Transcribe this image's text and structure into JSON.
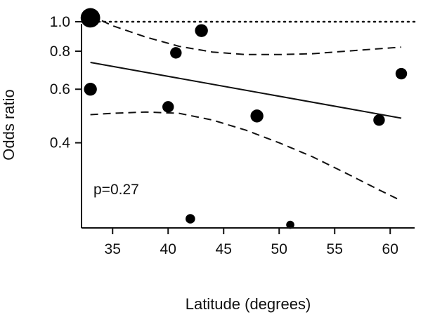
{
  "chart_data": {
    "type": "scatter",
    "title": "",
    "xlabel": "Latitude (degrees)",
    "ylabel": "Odds ratio",
    "y_scale": "log",
    "xlim": [
      32.2,
      62.2
    ],
    "ylim": [
      0.21,
      1.06
    ],
    "x_ticks": [
      35,
      40,
      45,
      50,
      55,
      60
    ],
    "x_tick_labels": [
      "35",
      "40",
      "45",
      "50",
      "55",
      "60"
    ],
    "y_ticks": [
      0.4,
      0.6,
      0.8,
      1.0
    ],
    "y_tick_labels": [
      "0.4",
      "0.6",
      "0.8",
      "1.0"
    ],
    "reference_line": {
      "y": 1.0,
      "style": "dotted"
    },
    "points": [
      {
        "x": 33.0,
        "y": 1.03,
        "weight": 10
      },
      {
        "x": 33.0,
        "y": 0.6,
        "weight": 3
      },
      {
        "x": 40.0,
        "y": 0.525,
        "weight": 2
      },
      {
        "x": 40.7,
        "y": 0.79,
        "weight": 2
      },
      {
        "x": 42.0,
        "y": 0.225,
        "weight": 1
      },
      {
        "x": 43.0,
        "y": 0.935,
        "weight": 3
      },
      {
        "x": 48.0,
        "y": 0.49,
        "weight": 3
      },
      {
        "x": 51.0,
        "y": 0.215,
        "weight": 0.5
      },
      {
        "x": 59.0,
        "y": 0.475,
        "weight": 2
      },
      {
        "x": 61.0,
        "y": 0.675,
        "weight": 2
      }
    ],
    "fit_line": {
      "x": [
        33,
        61
      ],
      "y": [
        0.735,
        0.482
      ]
    },
    "ci_upper": {
      "x": [
        33,
        35,
        38,
        41,
        44,
        47,
        50,
        53,
        56,
        59,
        61
      ],
      "y": [
        1.05,
        0.97,
        0.89,
        0.83,
        0.795,
        0.78,
        0.78,
        0.785,
        0.8,
        0.815,
        0.825
      ]
    },
    "ci_lower": {
      "x": [
        33,
        35,
        38,
        41,
        44,
        47,
        50,
        53,
        56,
        59,
        61
      ],
      "y": [
        0.495,
        0.5,
        0.505,
        0.5,
        0.475,
        0.44,
        0.4,
        0.36,
        0.318,
        0.28,
        0.258
      ]
    },
    "annotation": "p=0.27"
  }
}
